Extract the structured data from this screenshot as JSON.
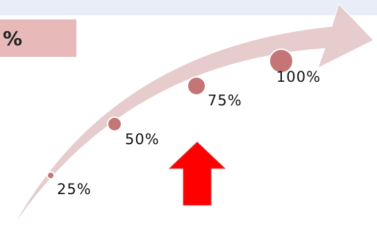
{
  "header_tile": {
    "label": "%"
  },
  "milestones": [
    {
      "label": "25%"
    },
    {
      "label": "50%"
    },
    {
      "label": "75%"
    },
    {
      "label": "100%"
    }
  ],
  "colors": {
    "arrow": "#e2c3c3",
    "milestone_dot": "#c47676",
    "highlight_arrow": "#ff0000",
    "tile": "#e7b9b9",
    "top_band": "#e9edf7"
  },
  "icons": {
    "progress_arrow": "curved-arrow-icon",
    "pointer": "up-arrow-icon"
  }
}
